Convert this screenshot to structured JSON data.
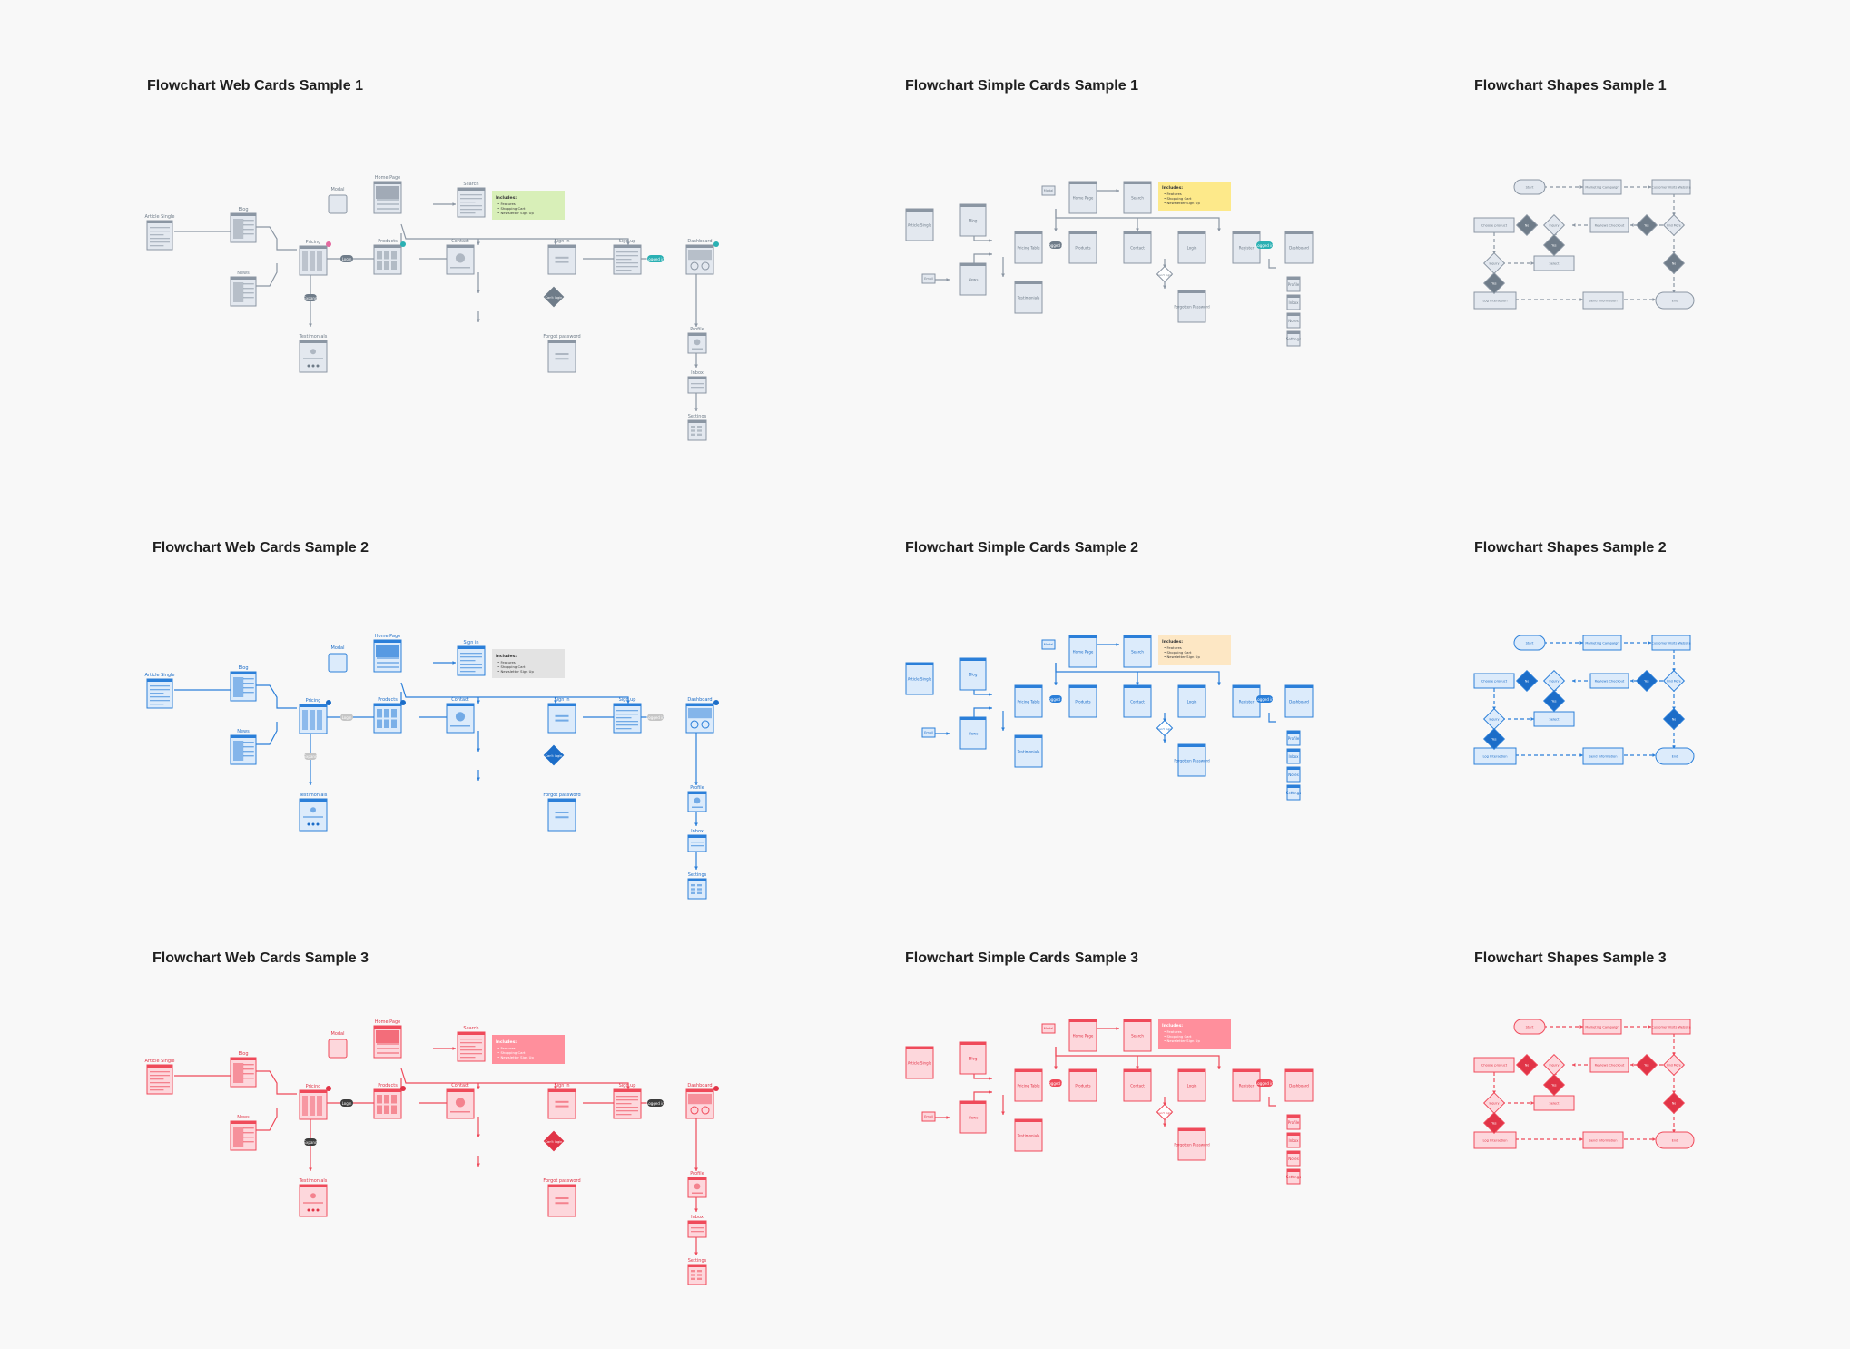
{
  "samples": [
    {
      "key": "web1",
      "title": "Flowchart Web Cards Sample 1"
    },
    {
      "key": "simple1",
      "title": "Flowchart Simple Cards Sample 1"
    },
    {
      "key": "shapes1",
      "title": "Flowchart Shapes Sample 1"
    },
    {
      "key": "web2",
      "title": "Flowchart Web Cards Sample 2"
    },
    {
      "key": "simple2",
      "title": "Flowchart Simple Cards Sample 2"
    },
    {
      "key": "shapes2",
      "title": "Flowchart Shapes Sample 2"
    },
    {
      "key": "web3",
      "title": "Flowchart Web Cards Sample 3"
    },
    {
      "key": "simple3",
      "title": "Flowchart Simple Cards Sample 3"
    },
    {
      "key": "shapes3",
      "title": "Flowchart Shapes Sample 3"
    }
  ],
  "themes": {
    "gray": {
      "stroke": "#8b96a3",
      "fill": "#e3e8ef",
      "dark": "#6f7c89",
      "note": "#d8efb8",
      "noteHdr": "#f1f3f5"
    },
    "blue": {
      "stroke": "#2b7fd9",
      "fill": "#dcebfb",
      "dark": "#1c6dc8",
      "note": "#e3e3e3",
      "noteHdr": "#2b7fd9"
    },
    "red": {
      "stroke": "#ef4a5a",
      "fill": "#fdd7dc",
      "dark": "#e13447",
      "note": "#ff8f9c",
      "noteHdr": "#ef4a5a"
    },
    "yellowNote": "#fde98a",
    "peachNote": "#fde7c4",
    "teal": "#2ab0b3"
  },
  "web_labels": {
    "modal": "Modal",
    "home": "Home Page",
    "search": "Search",
    "article": "Article Single",
    "blog": "Blog",
    "news": "News",
    "pricing": "Pricing",
    "products": "Products",
    "contact": "Contact",
    "signin": "Sign in",
    "signup": "Sign up",
    "dashboard": "Dashboard",
    "testimonials": "Testimonials",
    "forgot": "Forgot password",
    "profile": "Profile",
    "inbox": "Inbox",
    "settings": "Settings",
    "includes_title": "Includes:",
    "includes": [
      "• Features",
      "• Shopping Cart",
      "• Newsletter Sign Up"
    ],
    "pill_login": "Login",
    "pill_logged": "Logged in",
    "pill_expand": "Expand",
    "diamond": "Can't login"
  },
  "web2_labels": {
    "search": "Sign in"
  },
  "simple_labels": {
    "home": "Home Page",
    "search": "Search",
    "article": "Article Single",
    "blog": "Blog",
    "news": "News",
    "pricing": "Pricing Table",
    "products": "Products",
    "contact": "Contact",
    "login": "Login",
    "register": "Register",
    "dashboard": "Dashboard",
    "testimonials": "Testimonials",
    "forgot": "Forgotten Password",
    "modal": "Modal",
    "email": "Email",
    "diamond": "Can't login",
    "side": [
      "Profile",
      "Inbox",
      "Notes",
      "Settings"
    ],
    "includes_title": "Includes:",
    "includes": [
      "• Features",
      "• Shopping Cart",
      "• Newsletter Sign Up"
    ],
    "pill": "Logged in"
  },
  "shape_labels": {
    "start": "Start",
    "a": "Marketing Campaign",
    "b": "Customer Visits Website",
    "c": "Choose product",
    "d": "Reviews Checkout",
    "e": "Select",
    "f": "Find More",
    "g": "Inquiry",
    "h": "Log Interaction",
    "i": "Send Information",
    "j": "End",
    "yes": "Yes",
    "no": "No"
  }
}
